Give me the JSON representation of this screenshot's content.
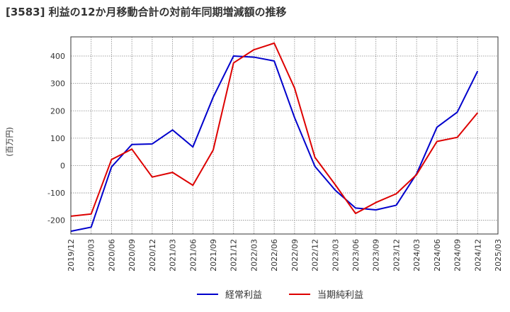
{
  "chart_data": {
    "type": "line",
    "title": "[3583]  利益の12か月移動合計の対前年同期増減額の推移",
    "ylabel": "(百万円)",
    "xlabel": "",
    "ylim": [
      -250,
      470
    ],
    "yticks": [
      -200,
      -100,
      0,
      100,
      200,
      300,
      400
    ],
    "grid": true,
    "legend_position": "bottom-center",
    "categories": [
      "2019/12",
      "2020/03",
      "2020/06",
      "2020/09",
      "2020/12",
      "2021/03",
      "2021/06",
      "2021/09",
      "2021/12",
      "2022/03",
      "2022/06",
      "2022/09",
      "2022/12",
      "2023/03",
      "2023/06",
      "2023/09",
      "2023/12",
      "2024/03",
      "2024/06",
      "2024/09",
      "2024/12",
      "2025/03"
    ],
    "series": [
      {
        "name": "経常利益",
        "color": "#0000cc",
        "values": [
          -240,
          -225,
          -5,
          77,
          79,
          130,
          68,
          250,
          400,
          396,
          382,
          175,
          -3,
          -90,
          -155,
          -162,
          -145,
          -30,
          140,
          195,
          345,
          null
        ]
      },
      {
        "name": "当期純利益",
        "color": "#dd0000",
        "values": [
          -185,
          -177,
          22,
          60,
          -42,
          -25,
          -72,
          57,
          375,
          423,
          447,
          283,
          30,
          -70,
          -175,
          -135,
          -103,
          -33,
          88,
          103,
          193,
          null
        ]
      }
    ]
  }
}
